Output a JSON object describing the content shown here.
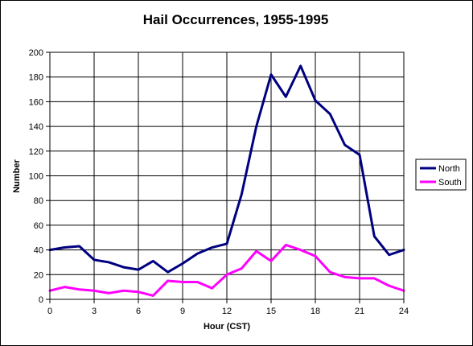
{
  "chart_data": {
    "type": "line",
    "title": "Hail Occurrences, 1955-1995",
    "xlabel": "Hour (CST)",
    "ylabel": "Number",
    "xlim": [
      0,
      24
    ],
    "ylim": [
      0,
      200
    ],
    "x_ticks": [
      0,
      3,
      6,
      9,
      12,
      15,
      18,
      21,
      24
    ],
    "y_ticks": [
      0,
      20,
      40,
      60,
      80,
      100,
      120,
      140,
      160,
      180,
      200
    ],
    "grid": true,
    "legend_position": "right",
    "x": [
      0,
      1,
      2,
      3,
      4,
      5,
      6,
      7,
      8,
      9,
      10,
      11,
      12,
      13,
      14,
      15,
      16,
      17,
      18,
      19,
      20,
      21,
      22,
      23,
      24
    ],
    "series": [
      {
        "name": "North",
        "color": "#000080",
        "values": [
          40,
          42,
          43,
          32,
          30,
          26,
          24,
          31,
          22,
          29,
          37,
          42,
          45,
          85,
          140,
          182,
          164,
          189,
          161,
          150,
          125,
          117,
          51,
          36,
          40
        ]
      },
      {
        "name": "South",
        "color": "#ff00ff",
        "values": [
          7,
          10,
          8,
          7,
          5,
          7,
          6,
          3,
          15,
          14,
          14,
          9,
          20,
          25,
          39,
          31,
          44,
          40,
          35,
          22,
          18,
          17,
          17,
          11,
          7
        ]
      }
    ]
  }
}
